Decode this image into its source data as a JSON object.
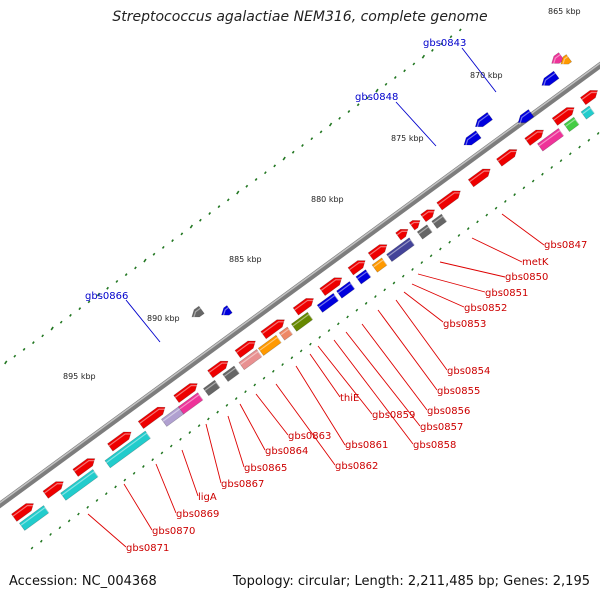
{
  "title": "Streptococcus agalactiae NEM316, complete genome",
  "footer": {
    "accession": "Accession: NC_004368",
    "info": "Topology: circular; Length: 2,211,485 bp; Genes: 2,195"
  },
  "kbp_labels": [
    "865 kbp",
    "870 kbp",
    "875 kbp",
    "880 kbp",
    "885 kbp",
    "890 kbp",
    "895 kbp"
  ],
  "top_labels": [
    "gbs0843",
    "gbs0848",
    "gbs0866"
  ],
  "bottom_labels": [
    "gbs0847",
    "metK",
    "gbs0850",
    "gbs0851",
    "gbs0852",
    "gbs0853",
    "gbs0854",
    "gbs0855",
    "gbs0856",
    "gbs0857",
    "gbs0858",
    "gbs0859",
    "thiE",
    "gbs0861",
    "gbs0862",
    "gbs0863",
    "gbs0864",
    "gbs0865",
    "gbs0867",
    "ligA",
    "gbs0869",
    "gbs0870",
    "gbs0871"
  ],
  "colors": {
    "forward_gene": "#ee0000",
    "cog_blue": "#0000dd",
    "cog_cyan": "#22cccc",
    "cog_magenta": "#ee3399",
    "cog_grey": "#666666",
    "cog_orange": "#ff9900",
    "cog_olive": "#668800",
    "cog_slate": "#444499",
    "cog_green": "#44cc44",
    "label_red": "#cc0000",
    "label_blue": "#0000cc",
    "tick_green": "#227722",
    "backbone": "#888888"
  }
}
